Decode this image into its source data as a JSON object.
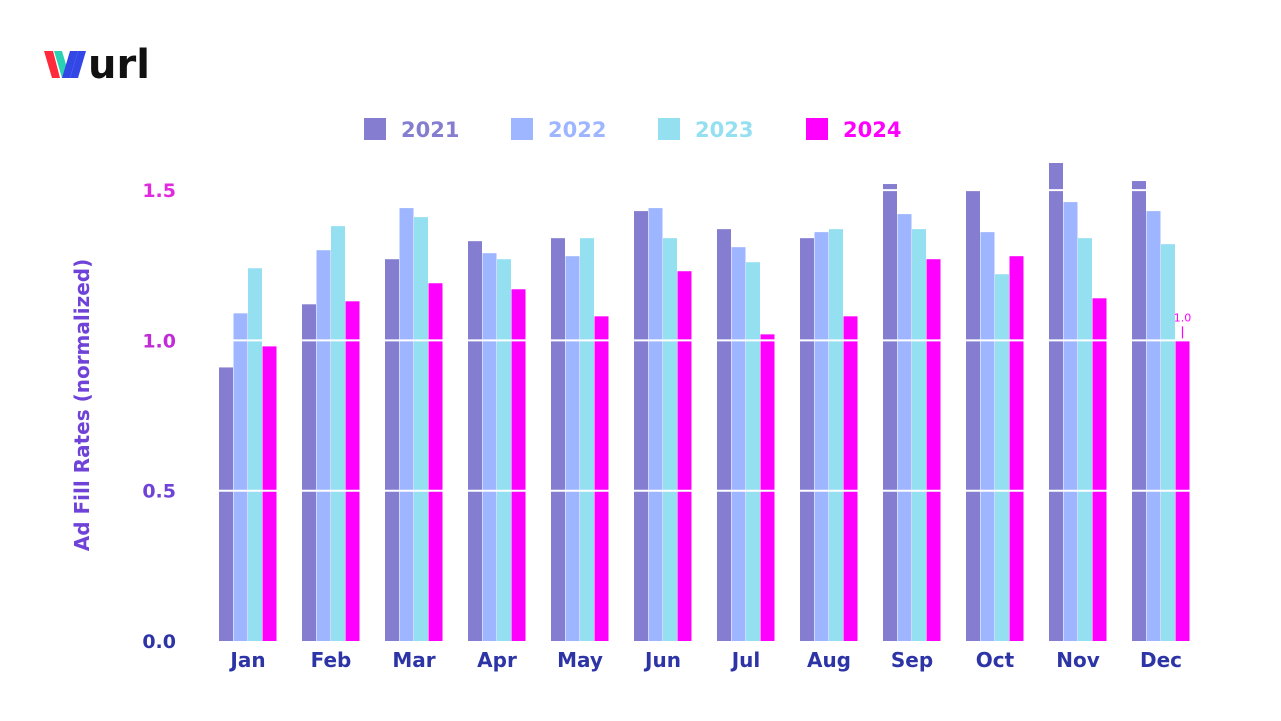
{
  "brand": {
    "logo_text": "wurl",
    "colors": {
      "w_left": "#ff2a3c",
      "w_mid": "#2ad1b4",
      "w_right": "#3347e6",
      "text": "#111111"
    }
  },
  "colors": {
    "2021": "#847dd0",
    "2022": "#9eb6ff",
    "2023": "#94dff0",
    "2024": "#ff00ff",
    "axis_label": "#6f43d8",
    "category_label": "#2d34a6",
    "gridline": "#ffffff"
  },
  "chart_data": {
    "type": "bar",
    "title": "",
    "xlabel": "",
    "ylabel": "Ad Fill Rates (normalized)",
    "ylim": [
      0,
      1.6
    ],
    "yticks": [
      {
        "value": 0.0,
        "label": "0.0",
        "color": "#2d34a6"
      },
      {
        "value": 0.5,
        "label": "0.5",
        "color": "#6f43d8"
      },
      {
        "value": 1.0,
        "label": "1.0",
        "color": "#c02cd6"
      },
      {
        "value": 1.5,
        "label": "1.5",
        "color": "#e12ae0"
      }
    ],
    "grid": true,
    "legend_position": "top-center",
    "categories": [
      "Jan",
      "Feb",
      "Mar",
      "Apr",
      "May",
      "Jun",
      "Jul",
      "Aug",
      "Sep",
      "Oct",
      "Nov",
      "Dec"
    ],
    "series": [
      {
        "name": "2021",
        "color": "#847dd0",
        "values": [
          0.91,
          1.12,
          1.27,
          1.33,
          1.34,
          1.43,
          1.37,
          1.34,
          1.52,
          1.5,
          1.59,
          1.53
        ]
      },
      {
        "name": "2022",
        "color": "#9eb6ff",
        "values": [
          1.09,
          1.3,
          1.44,
          1.29,
          1.28,
          1.44,
          1.31,
          1.36,
          1.42,
          1.36,
          1.46,
          1.43
        ]
      },
      {
        "name": "2023",
        "color": "#94dff0",
        "values": [
          1.24,
          1.38,
          1.41,
          1.27,
          1.34,
          1.34,
          1.26,
          1.37,
          1.37,
          1.22,
          1.34,
          1.32
        ]
      },
      {
        "name": "2024",
        "color": "#ff00ff",
        "values": [
          0.98,
          1.13,
          1.19,
          1.17,
          1.08,
          1.23,
          1.02,
          1.08,
          1.27,
          1.28,
          1.14,
          1.0
        ]
      }
    ],
    "annotations": [
      {
        "category": "Dec",
        "series": "2024",
        "text": "1.0"
      }
    ]
  }
}
